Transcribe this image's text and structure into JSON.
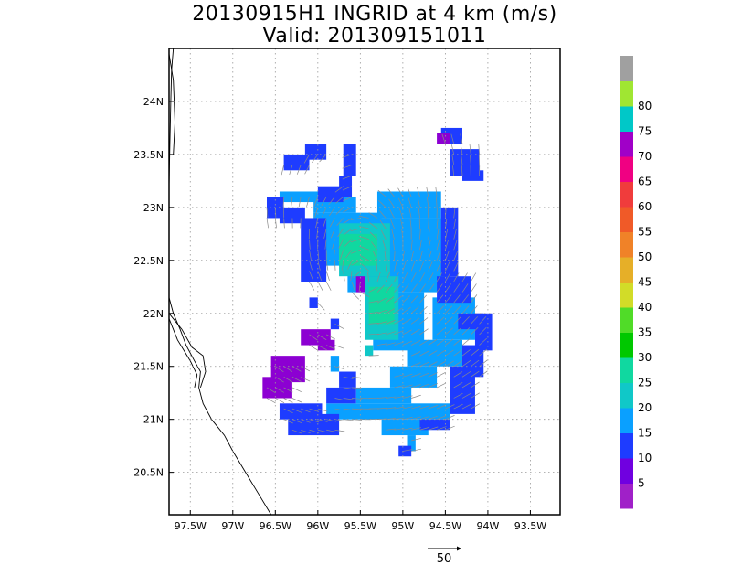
{
  "title": {
    "line1": "20130915H1 INGRID at 4 km (m/s)",
    "line2": "Valid: 201309151011"
  },
  "chart_data": {
    "type": "heatmap",
    "title": "20130915H1 INGRID at 4 km (m/s)",
    "subtitle": "Valid: 201309151011",
    "xlim": [
      -97.75,
      -93.15
    ],
    "ylim": [
      20.1,
      24.5
    ],
    "x_ticks": [
      {
        "value": -97.5,
        "label": "97.5W"
      },
      {
        "value": -97.0,
        "label": "97W"
      },
      {
        "value": -96.5,
        "label": "96.5W"
      },
      {
        "value": -96.0,
        "label": "96W"
      },
      {
        "value": -95.5,
        "label": "95.5W"
      },
      {
        "value": -95.0,
        "label": "95W"
      },
      {
        "value": -94.5,
        "label": "94.5W"
      },
      {
        "value": -94.0,
        "label": "94W"
      },
      {
        "value": -93.5,
        "label": "93.5W"
      }
    ],
    "y_ticks": [
      {
        "value": 20.5,
        "label": "20.5N"
      },
      {
        "value": 21.0,
        "label": "21N"
      },
      {
        "value": 21.5,
        "label": "21.5N"
      },
      {
        "value": 22.0,
        "label": "22N"
      },
      {
        "value": 22.5,
        "label": "22.5N"
      },
      {
        "value": 23.0,
        "label": "23N"
      },
      {
        "value": 23.5,
        "label": "23.5N"
      },
      {
        "value": 24.0,
        "label": "24N"
      }
    ],
    "grid": true,
    "colorbar": {
      "labels": [
        "5",
        "10",
        "15",
        "20",
        "25",
        "30",
        "35",
        "40",
        "45",
        "50",
        "55",
        "60",
        "65",
        "70",
        "75",
        "80"
      ],
      "colors": [
        "#a020c8",
        "#7000e0",
        "#1e3cff",
        "#0aa0ff",
        "#10c8c8",
        "#10d8a0",
        "#00c800",
        "#50dc28",
        "#d2dc28",
        "#e6af28",
        "#f08228",
        "#f05a28",
        "#f03c3c",
        "#f00082",
        "#a000c8",
        "#00c8c8",
        "#a0e632",
        "#a0a0a0"
      ]
    },
    "vector_scale": {
      "label": "50",
      "value": 50
    },
    "regions": [
      {
        "level": 15,
        "color": "#0aa0ff",
        "cells": [
          [
            -95.55,
            21.15,
            -94.9,
            21.3
          ],
          [
            -95.9,
            21.0,
            -94.45,
            21.15
          ],
          [
            -95.25,
            20.85,
            -94.7,
            21.0
          ],
          [
            -94.95,
            20.7,
            -94.85,
            20.85
          ],
          [
            -95.15,
            21.3,
            -94.6,
            21.5
          ],
          [
            -94.95,
            21.5,
            -94.3,
            21.75
          ],
          [
            -94.65,
            21.75,
            -94.15,
            22.15
          ],
          [
            -95.35,
            21.65,
            -94.75,
            22.2
          ],
          [
            -95.3,
            22.2,
            -94.45,
            22.9
          ],
          [
            -95.3,
            22.9,
            -94.55,
            23.15
          ],
          [
            -96.05,
            22.45,
            -95.25,
            22.95
          ],
          [
            -96.05,
            22.95,
            -95.55,
            23.1
          ],
          [
            -95.65,
            22.2,
            -95.25,
            22.45
          ],
          [
            -96.45,
            23.05,
            -95.95,
            23.15
          ],
          [
            -95.85,
            21.45,
            -95.75,
            21.6
          ]
        ]
      },
      {
        "level": 20,
        "color": "#10c8c8",
        "cells": [
          [
            -95.75,
            22.35,
            -95.15,
            22.85
          ],
          [
            -95.45,
            21.75,
            -95.05,
            22.35
          ],
          [
            -95.45,
            21.6,
            -95.35,
            21.7
          ]
        ]
      },
      {
        "level": 25,
        "color": "#10d8a0",
        "cells": [
          [
            -95.75,
            22.45,
            -95.3,
            22.75
          ],
          [
            -95.4,
            21.9,
            -95.1,
            22.25
          ]
        ]
      },
      {
        "level": 10,
        "color": "#1e3cff",
        "cells": [
          [
            -96.35,
            20.85,
            -95.75,
            21.05
          ],
          [
            -96.45,
            21.0,
            -95.95,
            21.15
          ],
          [
            -95.9,
            21.15,
            -95.55,
            21.3
          ],
          [
            -94.8,
            20.9,
            -94.45,
            21.0
          ],
          [
            -94.45,
            21.05,
            -94.15,
            21.5
          ],
          [
            -94.3,
            21.4,
            -94.05,
            21.7
          ],
          [
            -94.15,
            21.65,
            -93.95,
            22.0
          ],
          [
            -94.35,
            21.85,
            -94.05,
            22.0
          ],
          [
            -94.6,
            22.1,
            -94.2,
            22.35
          ],
          [
            -94.55,
            22.35,
            -94.35,
            23.0
          ],
          [
            -96.2,
            22.3,
            -95.9,
            22.9
          ],
          [
            -95.75,
            21.3,
            -95.55,
            21.45
          ],
          [
            -96.0,
            23.05,
            -95.7,
            23.2
          ],
          [
            -96.45,
            22.85,
            -96.15,
            23.0
          ],
          [
            -96.4,
            23.35,
            -96.1,
            23.5
          ],
          [
            -96.15,
            23.45,
            -95.9,
            23.6
          ],
          [
            -95.7,
            23.3,
            -95.55,
            23.6
          ],
          [
            -95.75,
            23.1,
            -95.6,
            23.3
          ],
          [
            -96.6,
            22.9,
            -96.4,
            23.1
          ],
          [
            -94.45,
            23.3,
            -94.1,
            23.55
          ],
          [
            -94.55,
            23.6,
            -94.3,
            23.75
          ],
          [
            -94.3,
            23.25,
            -94.05,
            23.35
          ],
          [
            -95.05,
            20.65,
            -94.9,
            20.75
          ],
          [
            -96.1,
            22.05,
            -96.0,
            22.15
          ],
          [
            -95.85,
            21.85,
            -95.75,
            21.95
          ]
        ]
      },
      {
        "level": 5,
        "color": "#8c00d2",
        "cells": [
          [
            -96.55,
            21.35,
            -96.15,
            21.6
          ],
          [
            -96.65,
            21.2,
            -96.3,
            21.4
          ],
          [
            -96.2,
            21.7,
            -95.85,
            21.85
          ],
          [
            -96.0,
            21.65,
            -95.8,
            21.75
          ],
          [
            -95.55,
            22.2,
            -95.45,
            22.35
          ],
          [
            -94.6,
            23.6,
            -94.45,
            23.7
          ]
        ]
      }
    ],
    "coastline": true
  }
}
